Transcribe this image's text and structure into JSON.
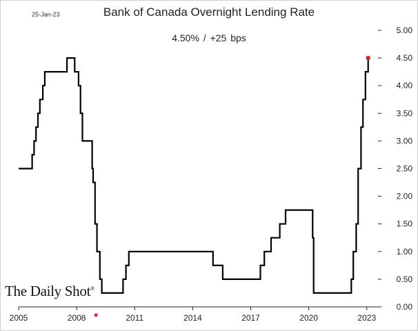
{
  "header": {
    "date": "25-Jan-23",
    "title": "Bank of Canada Overnight Lending Rate",
    "subtitle": "4.50%  /  +25 bps"
  },
  "branding": {
    "logo_text": "The Daily Shot",
    "logo_mark": "®"
  },
  "chart_data": {
    "type": "line",
    "title": "Bank of Canada Overnight Lending Rate",
    "subtitle": "4.50%  /  +25 bps",
    "xlabel": "",
    "ylabel": "",
    "xlim": [
      2005.0,
      2023.4
    ],
    "ylim": [
      0,
      5
    ],
    "x_ticks": [
      2005,
      2008,
      2011,
      2014,
      2017,
      2020,
      2023
    ],
    "x_tick_labels": [
      "2005",
      "2008",
      "2011",
      "2014",
      "2017",
      "2020",
      "2023"
    ],
    "y_ticks": [
      0,
      0.5,
      1,
      1.5,
      2,
      2.5,
      3,
      3.5,
      4,
      4.5,
      5
    ],
    "y_tick_labels": [
      "0.00",
      "0.50",
      "1.00",
      "1.50",
      "2.00",
      "2.50",
      "3.00",
      "3.50",
      "4.00",
      "4.50",
      "5.00"
    ],
    "y_axis_side": "right",
    "grid": false,
    "line_color": "#000000",
    "marker_color": "#e0202a",
    "series": [
      {
        "values": [
          [
            2005.0,
            2.5
          ],
          [
            2005.7,
            2.5
          ],
          [
            2005.7,
            2.75
          ],
          [
            2005.8,
            2.75
          ],
          [
            2005.8,
            3.0
          ],
          [
            2005.9,
            3.0
          ],
          [
            2005.9,
            3.25
          ],
          [
            2006.0,
            3.25
          ],
          [
            2006.0,
            3.5
          ],
          [
            2006.1,
            3.5
          ],
          [
            2006.1,
            3.75
          ],
          [
            2006.25,
            3.75
          ],
          [
            2006.25,
            4.0
          ],
          [
            2006.35,
            4.0
          ],
          [
            2006.35,
            4.25
          ],
          [
            2007.5,
            4.25
          ],
          [
            2007.5,
            4.5
          ],
          [
            2007.9,
            4.5
          ],
          [
            2007.9,
            4.25
          ],
          [
            2008.1,
            4.25
          ],
          [
            2008.1,
            4.0
          ],
          [
            2008.2,
            4.0
          ],
          [
            2008.2,
            3.5
          ],
          [
            2008.3,
            3.5
          ],
          [
            2008.3,
            3.0
          ],
          [
            2008.8,
            3.0
          ],
          [
            2008.8,
            2.5
          ],
          [
            2008.85,
            2.5
          ],
          [
            2008.85,
            2.25
          ],
          [
            2008.95,
            2.25
          ],
          [
            2008.95,
            1.5
          ],
          [
            2009.05,
            1.5
          ],
          [
            2009.05,
            1.0
          ],
          [
            2009.2,
            1.0
          ],
          [
            2009.2,
            0.5
          ],
          [
            2009.3,
            0.5
          ],
          [
            2009.3,
            0.25
          ],
          [
            2010.4,
            0.25
          ],
          [
            2010.4,
            0.5
          ],
          [
            2010.55,
            0.5
          ],
          [
            2010.55,
            0.75
          ],
          [
            2010.7,
            0.75
          ],
          [
            2010.7,
            1.0
          ],
          [
            2015.05,
            1.0
          ],
          [
            2015.05,
            0.75
          ],
          [
            2015.55,
            0.75
          ],
          [
            2015.55,
            0.5
          ],
          [
            2017.5,
            0.5
          ],
          [
            2017.5,
            0.75
          ],
          [
            2017.7,
            0.75
          ],
          [
            2017.7,
            1.0
          ],
          [
            2018.05,
            1.0
          ],
          [
            2018.05,
            1.25
          ],
          [
            2018.5,
            1.25
          ],
          [
            2018.5,
            1.5
          ],
          [
            2018.8,
            1.5
          ],
          [
            2018.8,
            1.75
          ],
          [
            2020.2,
            1.75
          ],
          [
            2020.2,
            1.25
          ],
          [
            2020.25,
            1.25
          ],
          [
            2020.25,
            0.25
          ],
          [
            2022.2,
            0.25
          ],
          [
            2022.2,
            0.5
          ],
          [
            2022.3,
            0.5
          ],
          [
            2022.3,
            1.0
          ],
          [
            2022.45,
            1.0
          ],
          [
            2022.45,
            1.5
          ],
          [
            2022.55,
            1.5
          ],
          [
            2022.55,
            2.5
          ],
          [
            2022.7,
            2.5
          ],
          [
            2022.7,
            3.25
          ],
          [
            2022.8,
            3.25
          ],
          [
            2022.8,
            3.75
          ],
          [
            2022.93,
            3.75
          ],
          [
            2022.93,
            4.25
          ],
          [
            2023.07,
            4.25
          ],
          [
            2023.07,
            4.5
          ]
        ]
      }
    ],
    "highlight_point": [
      2023.07,
      4.5
    ],
    "start_marker": [
      2009.0,
      -0.15
    ]
  }
}
